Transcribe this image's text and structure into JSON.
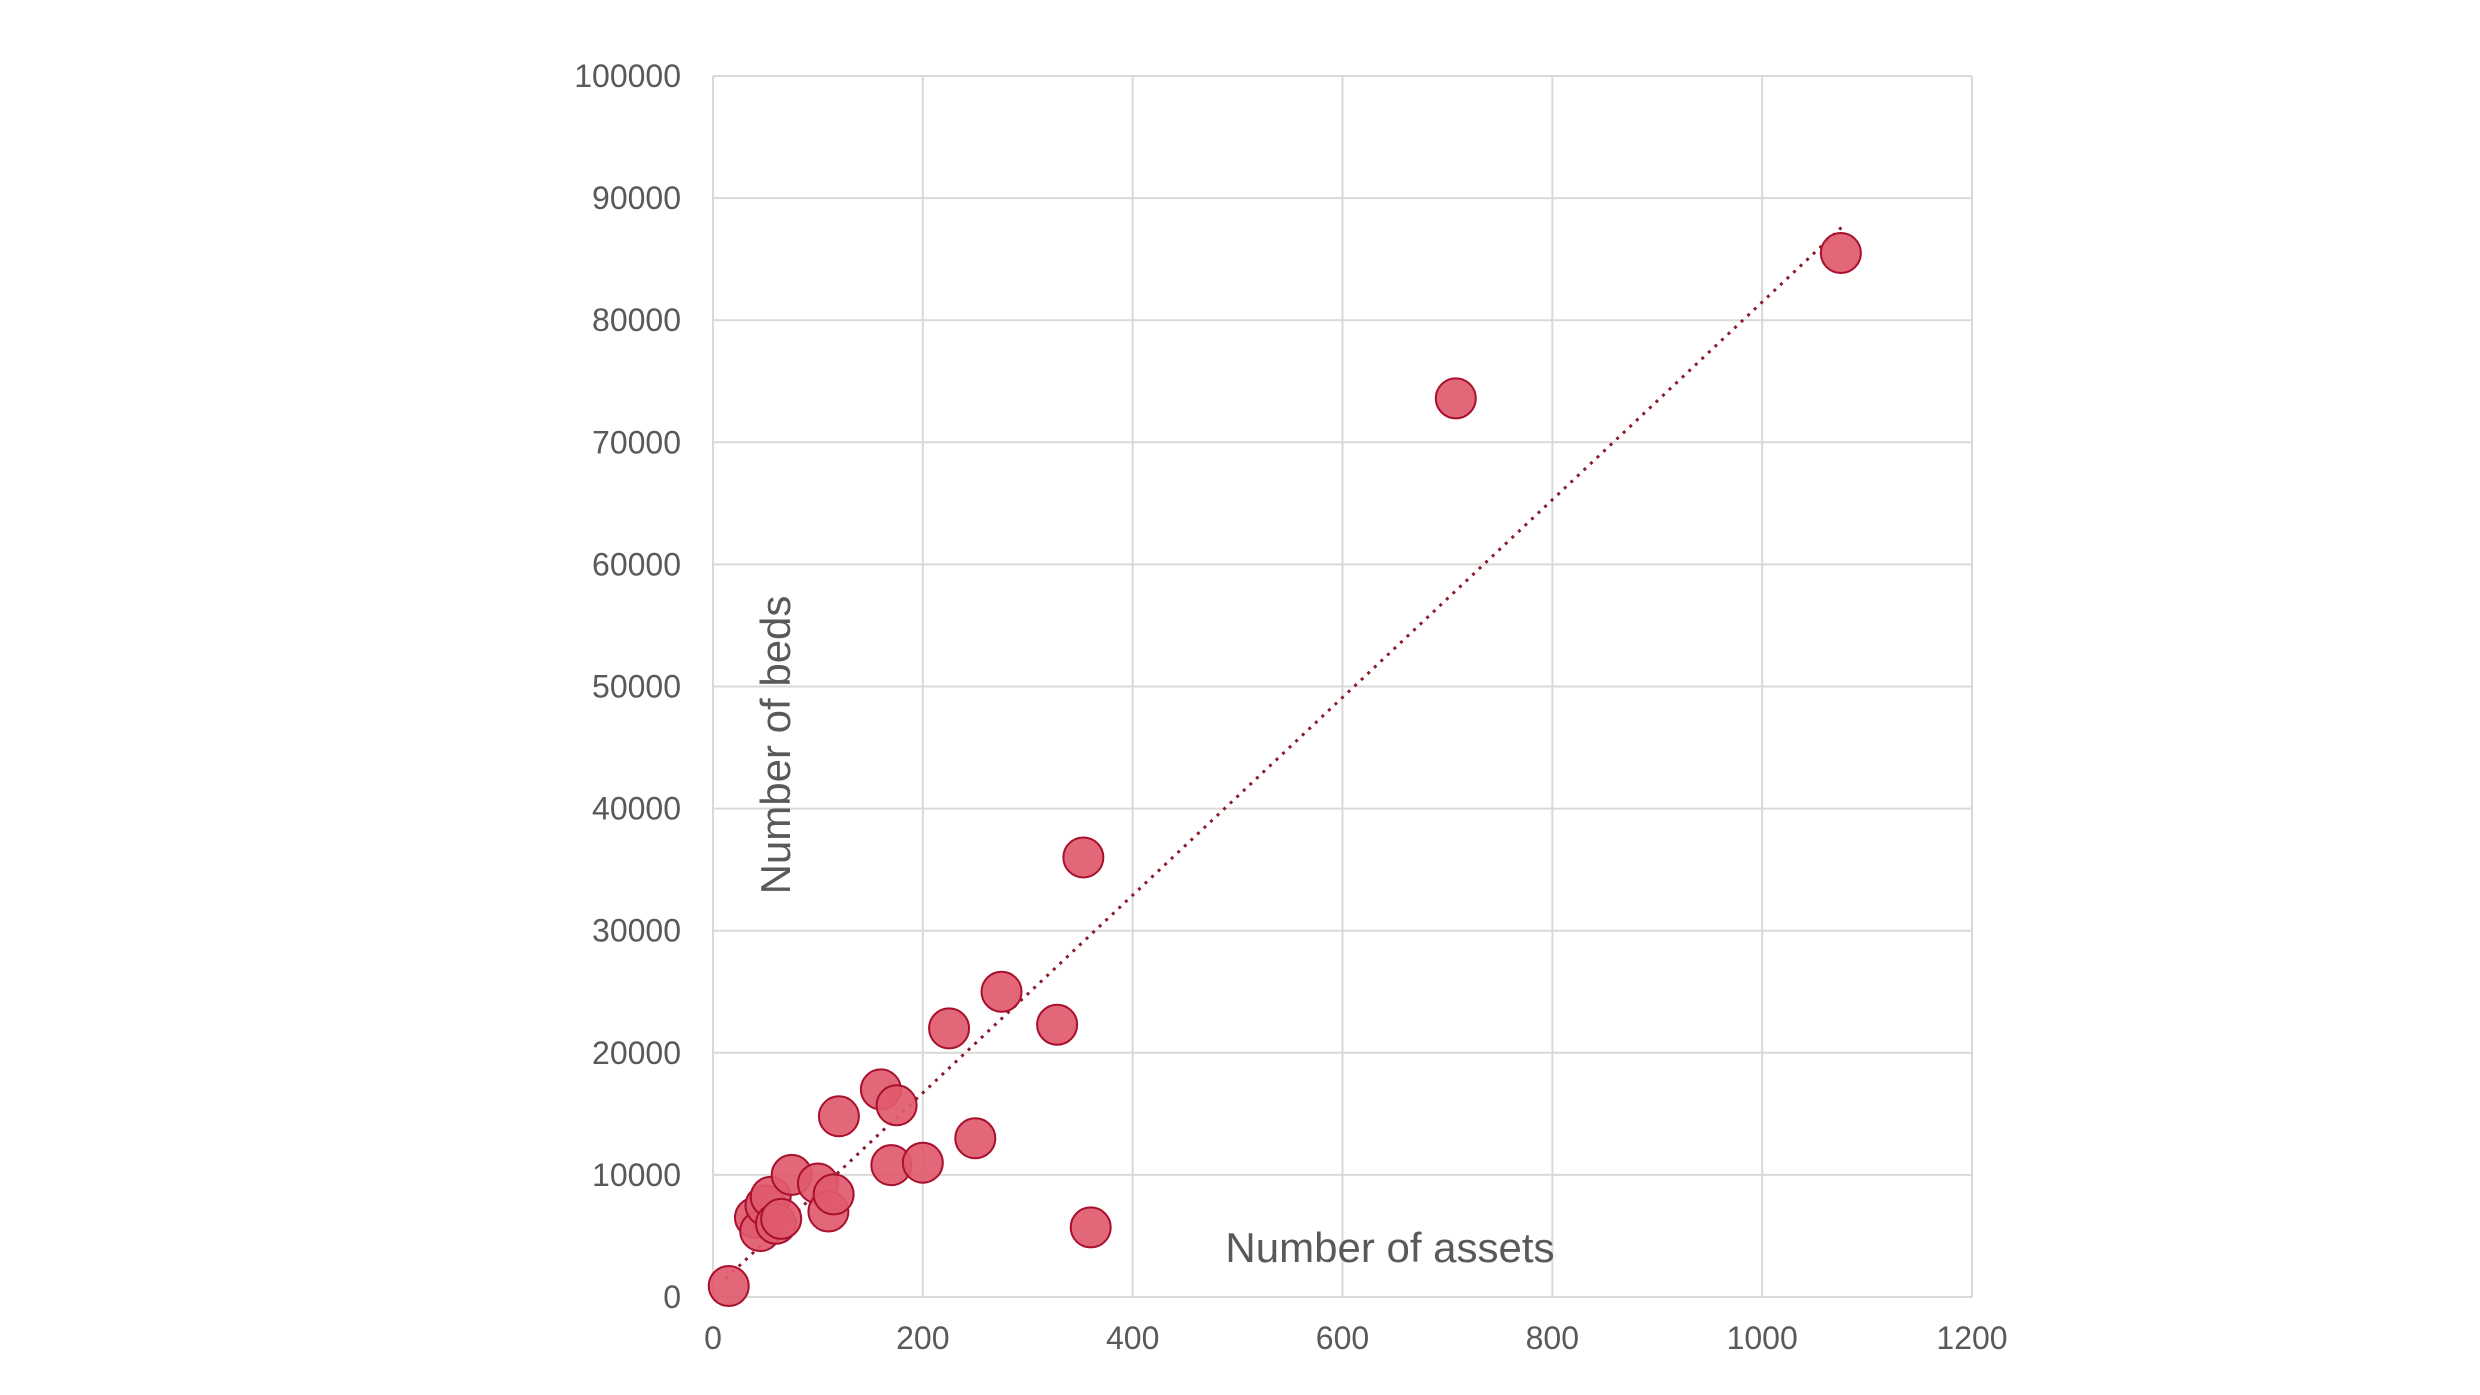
{
  "chart_data": {
    "type": "scatter",
    "xlabel": "Number of assets",
    "ylabel": "Number of beds",
    "xlim": [
      0,
      1200
    ],
    "ylim": [
      0,
      100000
    ],
    "xticks": [
      0,
      200,
      400,
      600,
      800,
      1000,
      1200
    ],
    "yticks": [
      0,
      10000,
      20000,
      30000,
      40000,
      50000,
      60000,
      70000,
      80000,
      90000,
      100000
    ],
    "grid": true,
    "legend": "none",
    "trendline": {
      "style": "dotted",
      "color": "#8b1a2b",
      "from": [
        12,
        1500
      ],
      "to": [
        1078,
        87800
      ]
    },
    "point_color": "#e05a6e",
    "point_edge_color": "#a8102e",
    "points": [
      {
        "x": 15,
        "y": 900
      },
      {
        "x": 40,
        "y": 6500
      },
      {
        "x": 45,
        "y": 5400
      },
      {
        "x": 50,
        "y": 7500
      },
      {
        "x": 55,
        "y": 8200
      },
      {
        "x": 60,
        "y": 6000
      },
      {
        "x": 65,
        "y": 6400
      },
      {
        "x": 75,
        "y": 10000
      },
      {
        "x": 100,
        "y": 9300
      },
      {
        "x": 110,
        "y": 7000
      },
      {
        "x": 115,
        "y": 8400
      },
      {
        "x": 120,
        "y": 14800
      },
      {
        "x": 160,
        "y": 17000
      },
      {
        "x": 170,
        "y": 10800
      },
      {
        "x": 175,
        "y": 15700
      },
      {
        "x": 200,
        "y": 11000
      },
      {
        "x": 225,
        "y": 22000
      },
      {
        "x": 250,
        "y": 13000
      },
      {
        "x": 275,
        "y": 25000
      },
      {
        "x": 328,
        "y": 22300
      },
      {
        "x": 353,
        "y": 36000
      },
      {
        "x": 360,
        "y": 5700
      },
      {
        "x": 708,
        "y": 73600
      },
      {
        "x": 1075,
        "y": 85500
      }
    ]
  }
}
